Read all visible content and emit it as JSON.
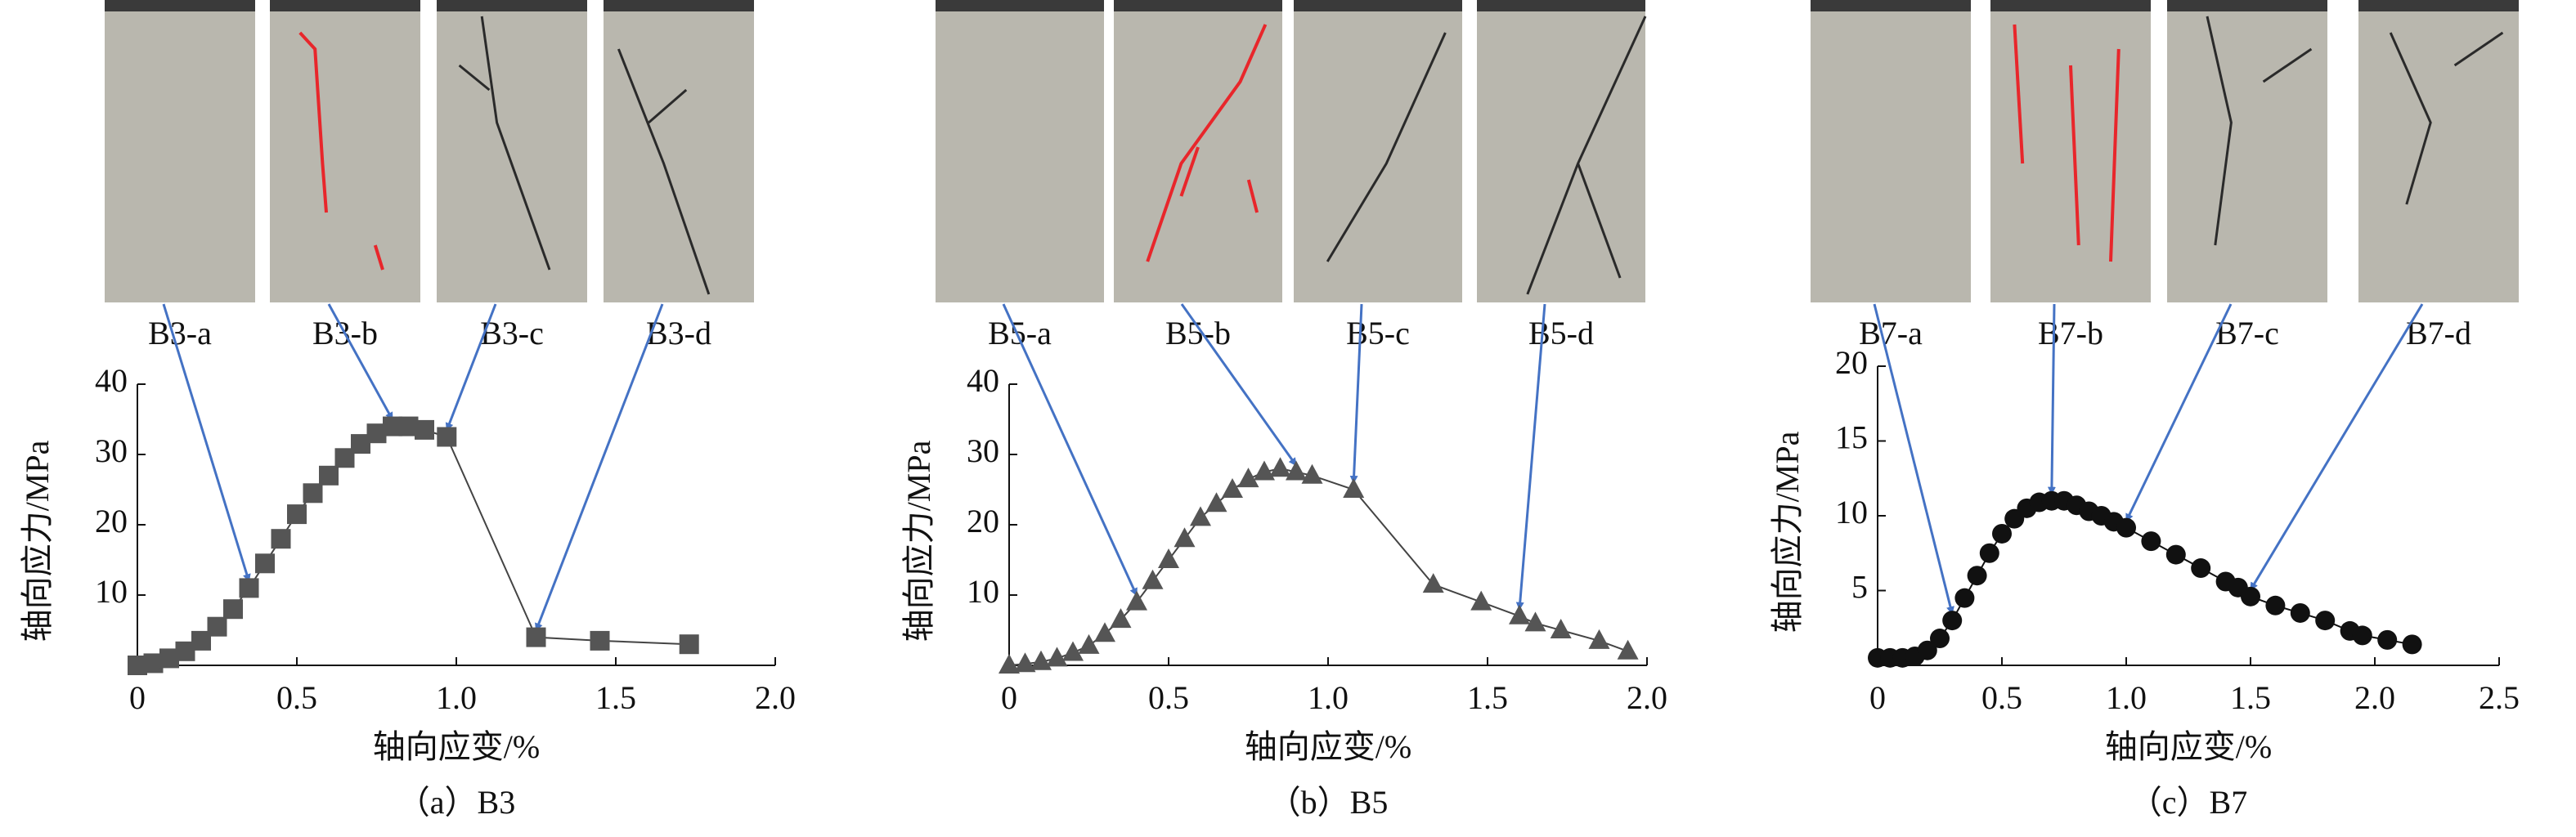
{
  "chart_data": [
    {
      "type": "scatter",
      "marker": "square",
      "color": "#555555",
      "line_color": "#444444",
      "photo_labels": [
        "B3-a",
        "B3-b",
        "B3-c",
        "B3-d"
      ],
      "x_label": "轴向应变/%",
      "y_label": "轴向应力/MPa",
      "caption": "（a）B3",
      "x": [
        0,
        0.05,
        0.1,
        0.15,
        0.2,
        0.25,
        0.3,
        0.35,
        0.4,
        0.45,
        0.5,
        0.55,
        0.6,
        0.65,
        0.7,
        0.75,
        0.8,
        0.85,
        0.9,
        0.97,
        1.25,
        1.45,
        1.73
      ],
      "values": [
        0,
        0.3,
        1,
        2,
        3.5,
        5.5,
        8,
        11,
        14.5,
        18,
        21.5,
        24.5,
        27,
        29.5,
        31.5,
        33,
        34,
        34,
        33.5,
        32.5,
        4,
        3.5,
        3
      ],
      "xlim": [
        0,
        2
      ],
      "xticks": [
        0,
        0.5,
        {
          "value": 1,
          "label": "1.0"
        },
        1.5,
        {
          "value": 2,
          "label": "2.0"
        }
      ],
      "ylim": [
        0,
        40
      ],
      "yticks": [
        10,
        20,
        30,
        40
      ]
    },
    {
      "type": "scatter",
      "marker": "triangle",
      "color": "#555555",
      "line_color": "#444444",
      "photo_labels": [
        "B5-a",
        "B5-b",
        "B5-c",
        "B5-d"
      ],
      "x_label": "轴向应变/%",
      "y_label": "轴向应力/MPa",
      "caption": "（b）B5",
      "x": [
        0,
        0.05,
        0.1,
        0.15,
        0.2,
        0.25,
        0.3,
        0.35,
        0.4,
        0.45,
        0.5,
        0.55,
        0.6,
        0.65,
        0.7,
        0.75,
        0.8,
        0.85,
        0.9,
        0.95,
        1.08,
        1.33,
        1.48,
        1.6,
        1.65,
        1.73,
        1.85,
        1.94
      ],
      "values": [
        0,
        0.2,
        0.5,
        1,
        1.8,
        2.8,
        4.5,
        6.5,
        9,
        12,
        15,
        18,
        21,
        23,
        25,
        26.5,
        27.5,
        28,
        27.5,
        27,
        25,
        11.5,
        9,
        7,
        6,
        5,
        3.5,
        2
      ],
      "xlim": [
        0,
        2
      ],
      "xticks": [
        0,
        0.5,
        {
          "value": 1,
          "label": "1.0"
        },
        1.5,
        {
          "value": 2,
          "label": "2.0"
        }
      ],
      "ylim": [
        0,
        40
      ],
      "yticks": [
        10,
        20,
        30,
        40
      ]
    },
    {
      "type": "scatter",
      "marker": "circle",
      "color": "#111111",
      "line_color": "#111111",
      "photo_labels": [
        "B7-a",
        "B7-b",
        "B7-c",
        "B7-d"
      ],
      "x_label": "轴向应变/%",
      "y_label": "轴向应力/MPa",
      "caption": "（c）B7",
      "x": [
        0,
        0.05,
        0.1,
        0.15,
        0.2,
        0.25,
        0.3,
        0.35,
        0.4,
        0.45,
        0.5,
        0.55,
        0.6,
        0.65,
        0.7,
        0.75,
        0.8,
        0.85,
        0.9,
        0.95,
        1.0,
        1.1,
        1.2,
        1.3,
        1.4,
        1.45,
        1.5,
        1.6,
        1.7,
        1.8,
        1.9,
        1.95,
        2.05,
        2.15
      ],
      "values": [
        0.5,
        0.5,
        0.5,
        0.6,
        1,
        1.8,
        3,
        4.5,
        6,
        7.5,
        8.8,
        9.8,
        10.5,
        10.9,
        11,
        11,
        10.7,
        10.3,
        10,
        9.6,
        9.2,
        8.3,
        7.4,
        6.5,
        5.6,
        5.2,
        4.6,
        4,
        3.5,
        3,
        2.3,
        2,
        1.7,
        1.4
      ],
      "xlim": [
        0,
        2.5
      ],
      "xticks": [
        0,
        0.5,
        {
          "value": 1,
          "label": "1.0"
        },
        1.5,
        {
          "value": 2,
          "label": "2.0"
        },
        2.5
      ],
      "ylim": [
        0,
        20
      ],
      "yticks": [
        5,
        10,
        15,
        20
      ]
    }
  ]
}
